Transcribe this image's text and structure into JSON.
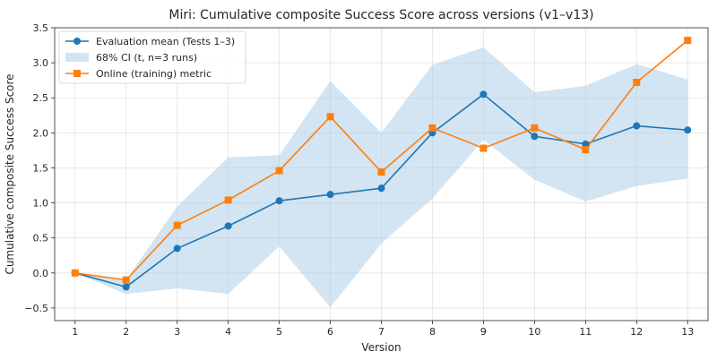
{
  "chart_data": {
    "type": "line",
    "title": "Miri: Cumulative composite Success Score across versions (v1–v13)",
    "xlabel": "Version",
    "ylabel": "Cumulative composite Success Score",
    "x": [
      1,
      2,
      3,
      4,
      5,
      6,
      7,
      8,
      9,
      10,
      11,
      12,
      13
    ],
    "xlim": [
      0.6,
      13.4
    ],
    "ylim": [
      -0.68,
      3.5
    ],
    "yticks": [
      -0.5,
      0.0,
      0.5,
      1.0,
      1.5,
      2.0,
      2.5,
      3.0,
      3.5
    ],
    "ytick_labels": [
      "−0.5",
      "0.0",
      "0.5",
      "1.0",
      "1.5",
      "2.0",
      "2.5",
      "3.0",
      "3.5"
    ],
    "grid": true,
    "legend_position": "top-left",
    "series": [
      {
        "name": "Evaluation mean (Tests 1–3)",
        "kind": "line",
        "marker": "circle",
        "color": "#1f77b4",
        "values": [
          0.0,
          -0.2,
          0.35,
          0.67,
          1.03,
          1.12,
          1.21,
          2.0,
          2.55,
          1.95,
          1.84,
          2.1,
          2.04
        ]
      },
      {
        "name": "68% CI (t, n=3 runs)",
        "kind": "band",
        "color": "#aecde8",
        "lower": [
          0.0,
          -0.3,
          -0.22,
          -0.3,
          0.38,
          -0.49,
          0.42,
          1.06,
          1.9,
          1.33,
          1.02,
          1.24,
          1.35
        ],
        "upper": [
          0.0,
          -0.1,
          0.95,
          1.65,
          1.68,
          2.74,
          2.0,
          2.97,
          3.22,
          2.58,
          2.67,
          2.98,
          2.76
        ]
      },
      {
        "name": "Online (training) metric",
        "kind": "line",
        "marker": "square",
        "color": "#ff7f0e",
        "values": [
          0.0,
          -0.1,
          0.68,
          1.04,
          1.46,
          2.23,
          1.44,
          2.07,
          1.78,
          2.07,
          1.76,
          2.72,
          3.32
        ]
      }
    ]
  }
}
